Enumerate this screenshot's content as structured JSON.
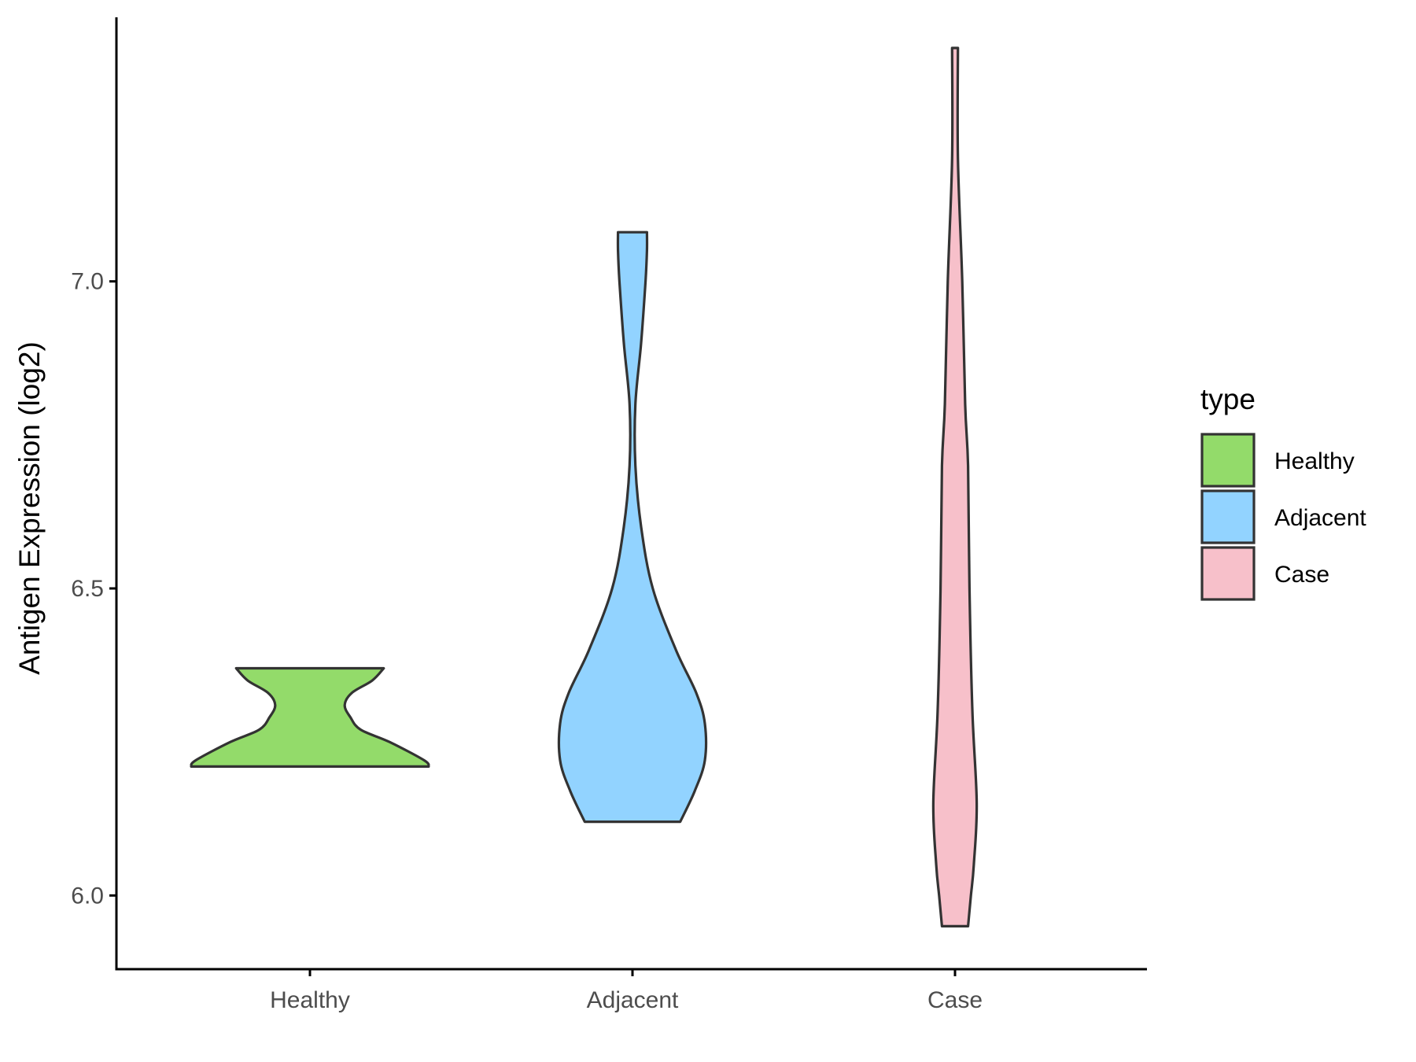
{
  "chart_data": {
    "type": "violin",
    "xlabel": "",
    "ylabel": "Antigen Expression (log2)",
    "ylim": [
      5.88,
      7.43
    ],
    "yticks": [
      "6.0",
      "6.5",
      "7.0"
    ],
    "categories": [
      "Healthy",
      "Adjacent",
      "Case"
    ],
    "grid": false,
    "legend": {
      "title": "type",
      "position": "right",
      "entries": [
        "Healthy",
        "Adjacent",
        "Case"
      ]
    },
    "series": [
      {
        "name": "Healthy",
        "color": "#93DB6A",
        "min": 6.21,
        "max": 6.37,
        "profile": [
          [
            6.21,
            0.82
          ],
          [
            6.22,
            0.79
          ],
          [
            6.25,
            0.55
          ],
          [
            6.27,
            0.35
          ],
          [
            6.29,
            0.28
          ],
          [
            6.31,
            0.24
          ],
          [
            6.33,
            0.29
          ],
          [
            6.35,
            0.43
          ],
          [
            6.37,
            0.51
          ]
        ]
      },
      {
        "name": "Adjacent",
        "color": "#92D3FF",
        "min": 6.12,
        "max": 7.08,
        "profile": [
          [
            6.12,
            0.33
          ],
          [
            6.17,
            0.43
          ],
          [
            6.22,
            0.5
          ],
          [
            6.28,
            0.5
          ],
          [
            6.33,
            0.44
          ],
          [
            6.4,
            0.3
          ],
          [
            6.5,
            0.14
          ],
          [
            6.6,
            0.06
          ],
          [
            6.7,
            0.02
          ],
          [
            6.8,
            0.02
          ],
          [
            6.9,
            0.06
          ],
          [
            7.0,
            0.09
          ],
          [
            7.05,
            0.1
          ],
          [
            7.08,
            0.1
          ]
        ]
      },
      {
        "name": "Case",
        "color": "#F7C0CA",
        "min": 5.95,
        "max": 7.38,
        "profile": [
          [
            5.95,
            0.09
          ],
          [
            6.0,
            0.11
          ],
          [
            6.05,
            0.13
          ],
          [
            6.15,
            0.15
          ],
          [
            6.3,
            0.12
          ],
          [
            6.5,
            0.1
          ],
          [
            6.7,
            0.09
          ],
          [
            6.8,
            0.07
          ],
          [
            7.0,
            0.05
          ],
          [
            7.2,
            0.02
          ],
          [
            7.38,
            0.02
          ]
        ]
      }
    ]
  }
}
